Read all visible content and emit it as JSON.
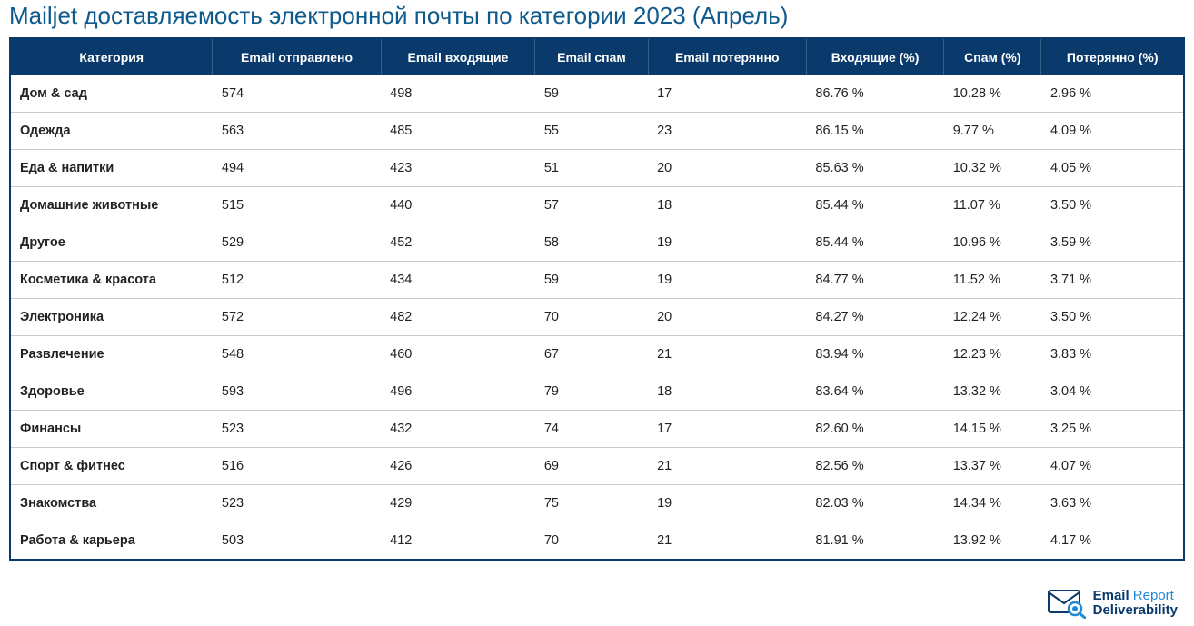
{
  "title": "Mailjet доставляемость электронной почты по категории 2023 (Апрель)",
  "colors": {
    "title": "#0f5a8c",
    "header_bg": "#0a3a6b",
    "header_text": "#ffffff",
    "row_border": "#c9c9c9",
    "table_border": "#0a3a6b",
    "body_text": "#222222",
    "logo_dark": "#0a3a6b",
    "logo_light": "#1f8ad6"
  },
  "table": {
    "columns": [
      "Категория",
      "Email отправлено",
      "Email входящие",
      "Email спам",
      "Email потерянно",
      "Входящие (%)",
      "Спам (%)",
      "Потерянно (%)"
    ],
    "rows": [
      [
        "Дом & сад",
        "574",
        "498",
        "59",
        "17",
        "86.76 %",
        "10.28 %",
        "2.96 %"
      ],
      [
        "Одежда",
        "563",
        "485",
        "55",
        "23",
        "86.15 %",
        "9.77 %",
        "4.09 %"
      ],
      [
        "Еда & напитки",
        "494",
        "423",
        "51",
        "20",
        "85.63 %",
        "10.32 %",
        "4.05 %"
      ],
      [
        "Домашние животные",
        "515",
        "440",
        "57",
        "18",
        "85.44 %",
        "11.07 %",
        "3.50 %"
      ],
      [
        "Другое",
        "529",
        "452",
        "58",
        "19",
        "85.44 %",
        "10.96 %",
        "3.59 %"
      ],
      [
        "Косметика & красота",
        "512",
        "434",
        "59",
        "19",
        "84.77 %",
        "11.52 %",
        "3.71 %"
      ],
      [
        "Электроника",
        "572",
        "482",
        "70",
        "20",
        "84.27 %",
        "12.24 %",
        "3.50 %"
      ],
      [
        "Развлечение",
        "548",
        "460",
        "67",
        "21",
        "83.94 %",
        "12.23 %",
        "3.83 %"
      ],
      [
        "Здоровье",
        "593",
        "496",
        "79",
        "18",
        "83.64 %",
        "13.32 %",
        "3.04 %"
      ],
      [
        "Финансы",
        "523",
        "432",
        "74",
        "17",
        "82.60 %",
        "14.15 %",
        "3.25 %"
      ],
      [
        "Спорт & фитнес",
        "516",
        "426",
        "69",
        "21",
        "82.56 %",
        "13.37 %",
        "4.07 %"
      ],
      [
        "Знакомства",
        "523",
        "429",
        "75",
        "19",
        "82.03 %",
        "14.34 %",
        "3.63 %"
      ],
      [
        "Работа & карьера",
        "503",
        "412",
        "70",
        "21",
        "81.91 %",
        "13.92 %",
        "4.17 %"
      ]
    ]
  },
  "logo": {
    "line1_bold": "Email",
    "line1_light": " Report",
    "line2": "Deliverability"
  }
}
